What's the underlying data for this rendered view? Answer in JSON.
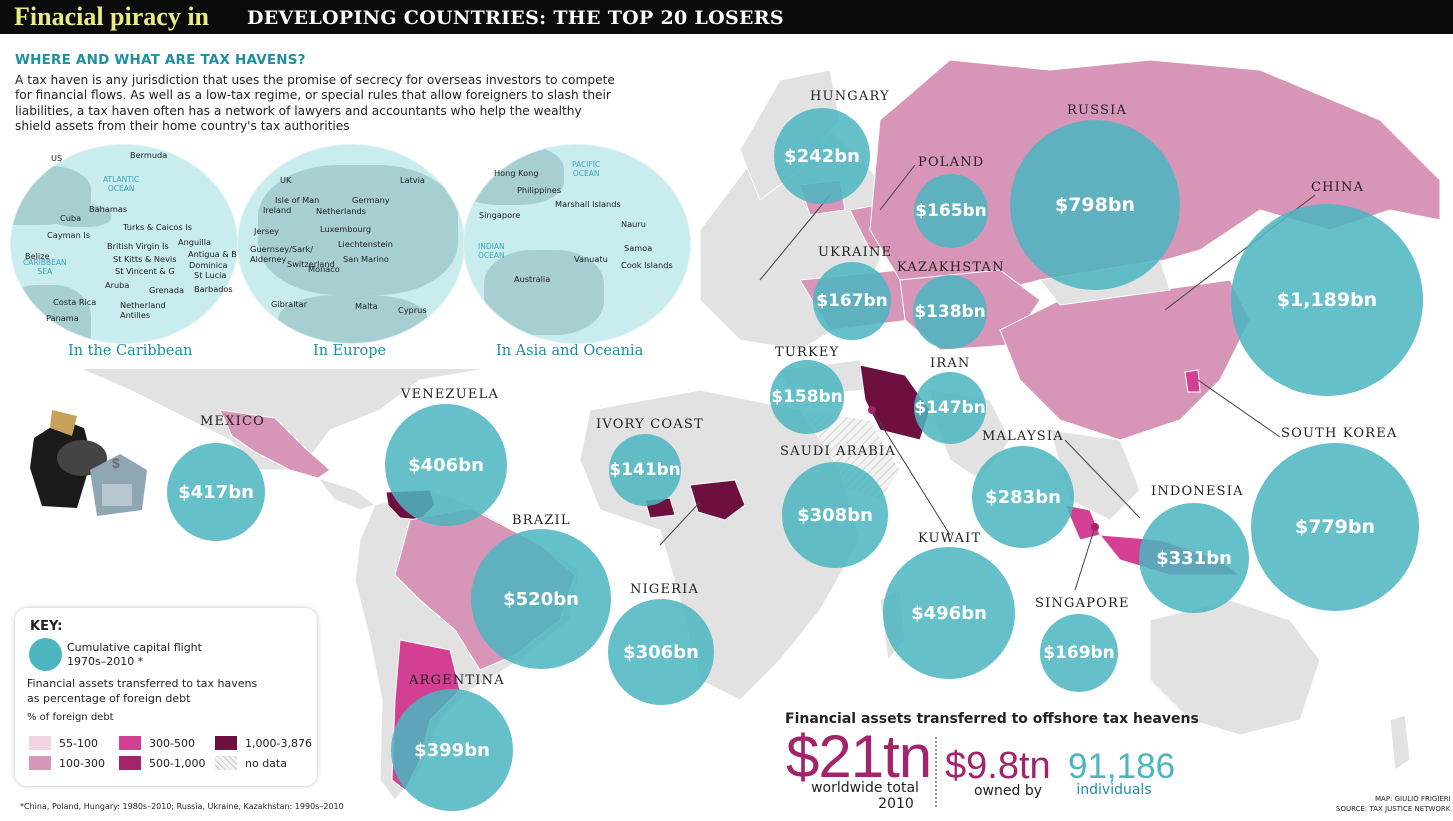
{
  "header": {
    "title_script": "Finacial piracy in",
    "title_main": "DEVELOPING COUNTRIES: THE TOP 20 LOSERS"
  },
  "info": {
    "heading": "WHERE AND WHAT ARE TAX HAVENS?",
    "text": "A tax haven is any jurisdiction that uses the promise of secrecy for overseas investors to compete for financial flows. As well as a low-tax regime, or special rules that allow foreigners to slash their liabilities, a tax haven often has a network of lawyers and accountants who help the wealthy shield assets from their home country's tax authorities",
    "insets": [
      {
        "caption": "In the Caribbean",
        "seas": [
          "ATLANTIC\nOCEAN",
          "CARIBBEAN\nSEA"
        ],
        "places": [
          "Bermuda",
          "US",
          "Bahamas",
          "Cuba",
          "Turks & Caicos Is",
          "Cayman Is",
          "British Virgin Is",
          "Anguilla",
          "Belize",
          "St Kitts & Nevis",
          "Antigua & B",
          "Dominica",
          "St Vincent & G",
          "St Lucia",
          "Aruba",
          "Grenada",
          "Barbados",
          "Costa Rica",
          "Netherland\nAntilles",
          "Panama"
        ]
      },
      {
        "caption": "In Europe",
        "seas": [],
        "places": [
          "UK",
          "Latvia",
          "Isle of Man",
          "Germany",
          "Ireland",
          "Netherlands",
          "Luxembourg",
          "Jersey",
          "Liechtenstein",
          "Guernsey/Sark/\nAlderney",
          "Switzerland",
          "San Marino",
          "Monaco",
          "Gibraltar",
          "Malta",
          "Cyprus"
        ]
      },
      {
        "caption": "In Asia and Oceania",
        "seas": [
          "PACIFIC\nOCEAN",
          "INDIAN\nOCEAN"
        ],
        "places": [
          "Hong Kong",
          "Philippines",
          "Marshall Islands",
          "Singapore",
          "Nauru",
          "Samoa",
          "Vanuatu",
          "Cook Islands",
          "Australia"
        ]
      }
    ]
  },
  "countries": [
    {
      "name": "HUNGARY",
      "value": "$242bn"
    },
    {
      "name": "RUSSIA",
      "value": "$798bn"
    },
    {
      "name": "POLAND",
      "value": "$165bn"
    },
    {
      "name": "CHINA",
      "value": "$1,189bn"
    },
    {
      "name": "UKRAINE",
      "value": "$167bn"
    },
    {
      "name": "KAZAKHSTAN",
      "value": "$138bn"
    },
    {
      "name": "TURKEY",
      "value": "$158bn"
    },
    {
      "name": "IRAN",
      "value": "$147bn"
    },
    {
      "name": "MEXICO",
      "value": "$417bn"
    },
    {
      "name": "VENEZUELA",
      "value": "$406bn"
    },
    {
      "name": "IVORY COAST",
      "value": "$141bn"
    },
    {
      "name": "SAUDI ARABIA",
      "value": "$308bn"
    },
    {
      "name": "MALAYSIA",
      "value": "$283bn"
    },
    {
      "name": "SOUTH KOREA",
      "value": "$779bn"
    },
    {
      "name": "BRAZIL",
      "value": "$520bn"
    },
    {
      "name": "INDONESIA",
      "value": "$331bn"
    },
    {
      "name": "KUWAIT",
      "value": "$496bn"
    },
    {
      "name": "NIGERIA",
      "value": "$306bn"
    },
    {
      "name": "SINGAPORE",
      "value": "$169bn"
    },
    {
      "name": "ARGENTINA",
      "value": "$399bn"
    }
  ],
  "key": {
    "title": "KEY:",
    "bubble_label_1": "Cumulative capital flight",
    "bubble_label_2": "1970s–2010 *",
    "fin_label_1": "Financial assets transferred to tax havens",
    "fin_label_2": "as percentage of foreign debt",
    "pct_label": "% of foreign debt",
    "ranges": [
      {
        "label": "55-100",
        "color": "#f1d3e2"
      },
      {
        "label": "100-300",
        "color": "#d796b8"
      },
      {
        "label": "300-500",
        "color": "#d23f93"
      },
      {
        "label": "500-1,000",
        "color": "#a3246a"
      },
      {
        "label": "1,000-3,876",
        "color": "#6d0f3f"
      },
      {
        "label": "no data",
        "color": "hatch"
      }
    ]
  },
  "footnote": "*China, Poland, Hungary: 1980s–2010; Russia, Ukraine, Kazakhstan: 1990s–2010",
  "stats": {
    "heading": "Financial assets transferred to offshore tax heavens",
    "worldwide_value": "$21tn",
    "worldwide_label_1": "worldwide total",
    "worldwide_label_2": "2010",
    "owned_value": "$9.8tn",
    "owned_label": "owned by",
    "individuals_value": "91,186",
    "individuals_label": "individuals"
  },
  "credits": {
    "map": "MAP: GIULIO FRIGIERI",
    "source": "SOURCE: TAX JUSTICE NETWORK"
  },
  "colors": {
    "bubble": "#4cb6c0",
    "accent": "#1e8fa0",
    "magenta": "#a3246a",
    "land": "#e2e2e2"
  }
}
